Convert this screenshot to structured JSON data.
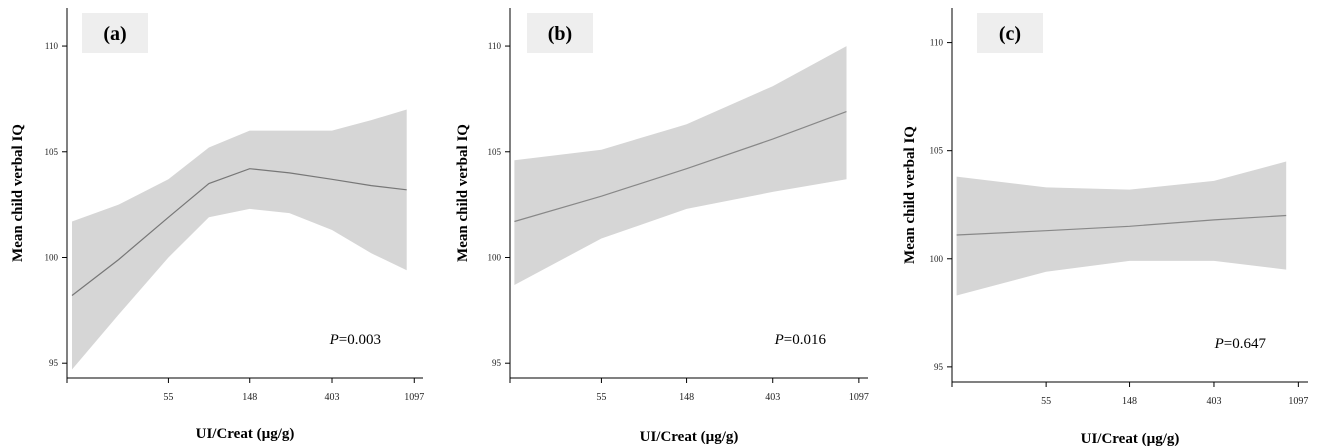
{
  "chart_data": [
    {
      "type": "line",
      "panel_label": "(a)",
      "xlabel": "UI/Creat (µg/g)",
      "ylabel": "Mean child verbal IQ",
      "x_tick_labels": [
        "55",
        "148",
        "403",
        "1097"
      ],
      "x_tick_values": [
        55,
        148,
        403,
        1097
      ],
      "xlim": [
        16,
        1220
      ],
      "x_scale": "log",
      "yticks": [
        95,
        100,
        105,
        110
      ],
      "ylim": [
        94.3,
        111.8
      ],
      "annotation_prefix": "P",
      "annotation_value": "=0.003",
      "series": [
        {
          "x": [
            17,
            30,
            55,
            90,
            148,
            240,
            403,
            650,
            1000
          ],
          "y": [
            98.2,
            99.9,
            101.9,
            103.5,
            104.2,
            104.0,
            103.7,
            103.4,
            103.2
          ],
          "lower": [
            94.7,
            97.3,
            100.0,
            101.9,
            102.3,
            102.1,
            101.3,
            100.2,
            99.4
          ],
          "upper": [
            101.7,
            102.5,
            103.7,
            105.2,
            106.0,
            106.0,
            106.0,
            106.5,
            107.0
          ]
        }
      ],
      "grid": false,
      "colors": {
        "band": "#d6d6d6",
        "line": "#777777",
        "label_box": "#eeeeee"
      }
    },
    {
      "type": "line",
      "panel_label": "(b)",
      "xlabel": "UI/Creat (µg/g)",
      "ylabel": "Mean child verbal IQ",
      "x_tick_labels": [
        "55",
        "148",
        "403",
        "1097"
      ],
      "x_tick_values": [
        55,
        148,
        403,
        1097
      ],
      "xlim": [
        19,
        1220
      ],
      "x_scale": "log",
      "yticks": [
        95,
        100,
        105,
        110
      ],
      "ylim": [
        94.3,
        111.8
      ],
      "annotation_prefix": "P",
      "annotation_value": "=0.016",
      "series": [
        {
          "x": [
            20,
            55,
            148,
            403,
            950
          ],
          "y": [
            101.7,
            102.9,
            104.2,
            105.6,
            106.9
          ],
          "lower": [
            98.7,
            100.9,
            102.3,
            103.1,
            103.7
          ],
          "upper": [
            104.6,
            105.1,
            106.3,
            108.1,
            110.0
          ]
        }
      ],
      "grid": false,
      "colors": {
        "band": "#d6d6d6",
        "line": "#888888",
        "label_box": "#eeeeee"
      }
    },
    {
      "type": "line",
      "panel_label": "(c)",
      "xlabel": "UI/Creat (µg/g)",
      "ylabel": "Mean child verbal IQ",
      "x_tick_labels": [
        "55",
        "148",
        "403",
        "1097"
      ],
      "x_tick_values": [
        55,
        148,
        403,
        1097
      ],
      "xlim": [
        18,
        1230
      ],
      "x_scale": "log",
      "yticks": [
        95,
        100,
        105,
        110
      ],
      "ylim": [
        94.3,
        111.6
      ],
      "annotation_prefix": "P",
      "annotation_value": "=0.647",
      "series": [
        {
          "x": [
            19,
            55,
            148,
            403,
            950
          ],
          "y": [
            101.1,
            101.3,
            101.5,
            101.8,
            102.0
          ],
          "lower": [
            98.3,
            99.4,
            99.9,
            99.9,
            99.5
          ],
          "upper": [
            103.8,
            103.3,
            103.2,
            103.6,
            104.5
          ]
        }
      ],
      "grid": false,
      "colors": {
        "band": "#d6d6d6",
        "line": "#888888",
        "label_box": "#eeeeee"
      }
    }
  ]
}
